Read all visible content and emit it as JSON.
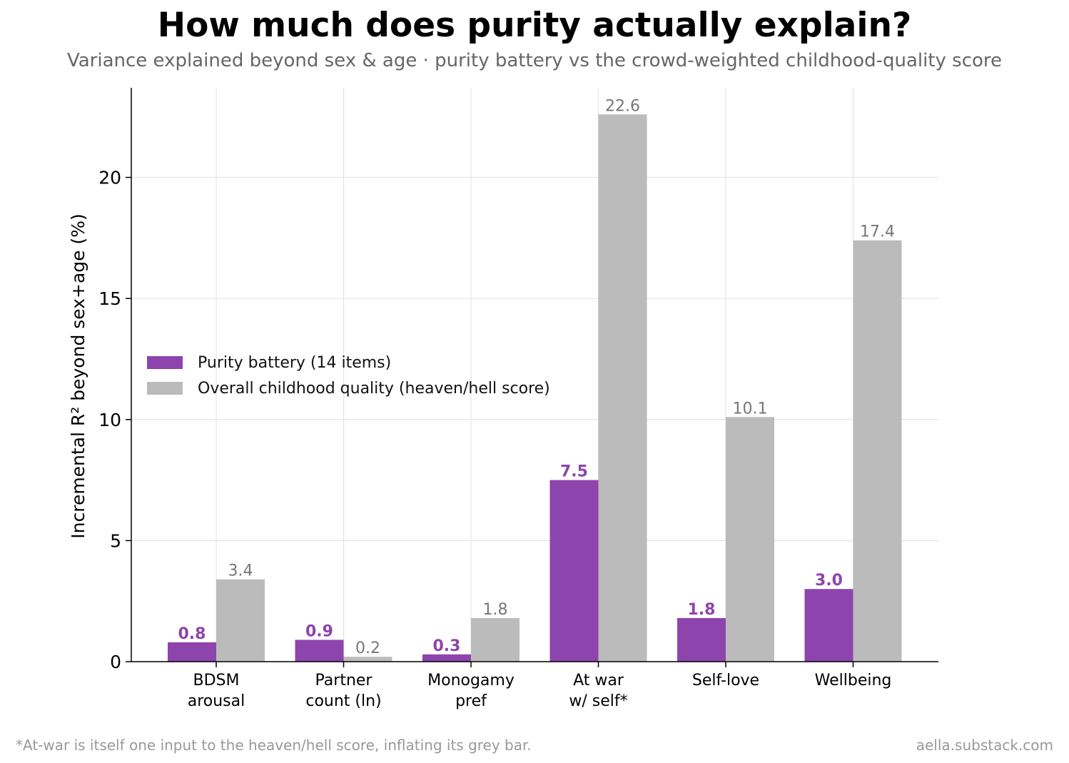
{
  "title": "How much does purity actually explain?",
  "subtitle": "Variance explained beyond sex & age · purity battery vs the crowd-weighted childhood-quality score",
  "footnote": "*At-war is itself one input to the heaven/hell score, inflating its grey bar.",
  "source": "aella.substack.com",
  "colors": {
    "purity": "#8E44AD",
    "childhood": "#BBBBBB",
    "grey_label": "#777777",
    "grid": "#E5E5E5"
  },
  "chart_data": {
    "type": "bar",
    "title": "How much does purity actually explain?",
    "subtitle": "Variance explained beyond sex & age · purity battery vs the crowd-weighted childhood-quality score",
    "ylabel": "Incremental R² beyond sex+age (%)",
    "xlabel": "",
    "categories": [
      [
        "BDSM",
        "arousal"
      ],
      [
        "Partner",
        "count (ln)"
      ],
      [
        "Monogamy",
        "pref"
      ],
      [
        "At war",
        "w/ self*"
      ],
      [
        "Self-love"
      ],
      [
        "Wellbeing"
      ]
    ],
    "series": [
      {
        "name": "Purity battery (14 items)",
        "values": [
          0.8,
          0.9,
          0.3,
          7.5,
          1.8,
          3.0
        ],
        "labels": [
          "0.8",
          "0.9",
          "0.3",
          "7.5",
          "1.8",
          "3.0"
        ]
      },
      {
        "name": "Overall childhood quality (heaven/hell score)",
        "values": [
          3.4,
          0.2,
          1.8,
          22.6,
          10.1,
          17.4
        ],
        "labels": [
          "3.4",
          "0.2",
          "1.8",
          "22.6",
          "10.1",
          "17.4"
        ]
      }
    ],
    "ylim": [
      0,
      23.7
    ],
    "yticks": [
      0,
      5,
      10,
      15,
      20
    ],
    "grid": true,
    "legend_position": "center-left"
  }
}
